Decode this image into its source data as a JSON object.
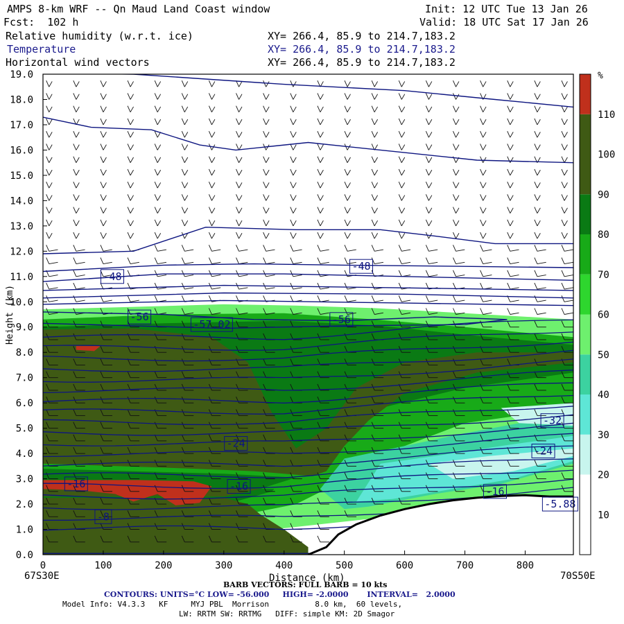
{
  "header": {
    "title": "AMPS 8-km WRF -- Qn Maud Land Coast window",
    "init": "Init: 12 UTC Tue 13 Jan 26",
    "fcst": "Fcst:  102 h",
    "valid": "Valid: 18 UTC Sat 17 Jan 26",
    "fields": [
      {
        "name": "Relative humidity (w.r.t. ice)",
        "xy": "XY= 266.4, 85.9 to 214.7,183.2"
      },
      {
        "name": "Temperature",
        "xy": "XY= 266.4, 85.9 to 214.7,183.2"
      },
      {
        "name": "Horizontal wind vectors",
        "xy": "XY= 266.4, 85.9 to 214.7,183.2"
      }
    ]
  },
  "colors": {
    "rh_above_110": "#c0301c",
    "rh_100_110": "#3f5a14",
    "rh_90_100": "#0a7a14",
    "rh_80_90": "#18aa18",
    "rh_70_80": "#2ed62e",
    "rh_60_70": "#6ef06e",
    "rh_50_60": "#3cd2a0",
    "rh_40_50": "#5ee6d6",
    "rh_30_40": "#c8f5ee",
    "rh_below_30": "#ffffff",
    "contour": "#0d1580",
    "terrain": "#ffffff"
  },
  "chart_data": {
    "type": "heatmap",
    "title": "AMPS 8-km WRF -- Qn Maud Land Coast window",
    "xlabel": "Distance (km)",
    "ylabel": "Height (km)",
    "xlim": [
      0,
      880
    ],
    "ylim": [
      0,
      19
    ],
    "x_ticks": [
      "0",
      "100",
      "200",
      "300",
      "400",
      "500",
      "600",
      "700",
      "800"
    ],
    "y_ticks": [
      "0.0",
      "1.0",
      "2.0",
      "3.0",
      "4.0",
      "5.0",
      "6.0",
      "7.0",
      "8.0",
      "9.0",
      "10.0",
      "11.0",
      "12.0",
      "13.0",
      "14.0",
      "15.0",
      "16.0",
      "17.0",
      "18.0",
      "19.0"
    ],
    "x_start_label": "67S30E",
    "x_end_label": "70S50E",
    "colorbar": {
      "unit": "%",
      "ticks": [
        "10",
        "20",
        "30",
        "40",
        "50",
        "60",
        "70",
        "80",
        "90",
        "100",
        "110"
      ]
    },
    "terrain_profile": {
      "distance_km": [
        0,
        440,
        470,
        490,
        520,
        560,
        600,
        640,
        680,
        720,
        760,
        800,
        840,
        880
      ],
      "height_km": [
        0,
        0,
        0.3,
        0.8,
        1.2,
        1.55,
        1.8,
        2.0,
        2.15,
        2.25,
        2.32,
        2.35,
        2.3,
        2.3
      ]
    },
    "temperature_contour_labels": [
      {
        "text": "-48",
        "x_km": 115,
        "y_km": 11.0
      },
      {
        "text": "-48",
        "x_km": 528,
        "y_km": 11.4
      },
      {
        "text": "-56",
        "x_km": 160,
        "y_km": 9.4
      },
      {
        "text": "-57.02",
        "x_km": 280,
        "y_km": 9.1
      },
      {
        "text": "-56",
        "x_km": 495,
        "y_km": 9.3
      },
      {
        "text": "-32",
        "x_km": 845,
        "y_km": 5.3
      },
      {
        "text": "-24",
        "x_km": 320,
        "y_km": 4.4
      },
      {
        "text": "-24",
        "x_km": 830,
        "y_km": 4.1
      },
      {
        "text": "-16",
        "x_km": 55,
        "y_km": 2.8
      },
      {
        "text": "-16",
        "x_km": 325,
        "y_km": 2.7
      },
      {
        "text": "-16",
        "x_km": 750,
        "y_km": 2.5
      },
      {
        "text": "-8",
        "x_km": 100,
        "y_km": 1.5
      },
      {
        "text": "-5.88",
        "x_km": 858,
        "y_km": 2.0
      }
    ],
    "footer": {
      "barb_line": "BARB VECTORS: FULL BARB = 10 kts",
      "contours_line": "CONTOURS: UNITS=°C LOW= -56.000     HIGH= -2.0000       INTERVAL=   2.0000",
      "model_line1": "Model Info: V4.3.3   KF     MYJ PBL  Morrison          8.0 km,  60 levels,",
      "model_line2": "LW: RRTM SW: RRTMG   DIFF: simple KM: 2D Smagor"
    }
  }
}
